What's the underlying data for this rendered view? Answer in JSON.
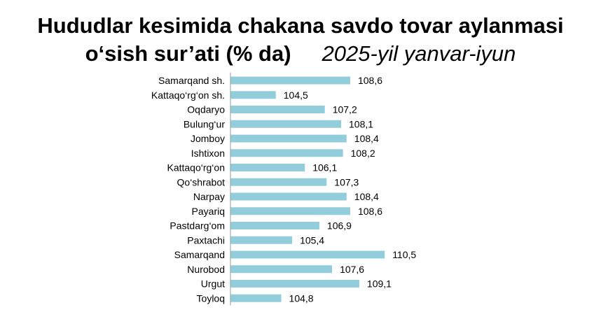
{
  "title_line1": "Hududlar kesimida chakana savdo tovar aylanmasi",
  "title_line2": "o‘sish sur’ati (% da)",
  "subtitle": "2025-yil yanvar-iyun",
  "bar_color": "#92CDDC",
  "chart_data": {
    "type": "bar",
    "orientation": "horizontal",
    "title": "Hududlar kesimida chakana savdo tovar aylanmasi o‘sish sur’ati (% da)",
    "subtitle": "2025-yil yanvar-iyun",
    "categories": [
      "Samarqand sh.",
      "Kattaqo‘rg‘on sh.",
      "Oqdaryo",
      "Bulung‘ur",
      "Jomboy",
      "Ishtixon",
      "Kattaqo‘rg‘on",
      "Qo‘shrabot",
      "Narpay",
      "Payariq",
      "Pastdarg‘om",
      "Paxtachi",
      "Samarqand",
      "Nurobod",
      "Urgut",
      "Toyloq"
    ],
    "values": [
      108.6,
      104.5,
      107.2,
      108.1,
      108.4,
      108.2,
      106.1,
      107.3,
      108.4,
      108.6,
      106.9,
      105.4,
      110.5,
      107.6,
      109.1,
      104.8
    ],
    "value_labels": [
      "108,6",
      "104,5",
      "107,2",
      "108,1",
      "108,4",
      "108,2",
      "106,1",
      "107,3",
      "108,4",
      "108,6",
      "106,9",
      "105,4",
      "110,5",
      "107,6",
      "109,1",
      "104,8"
    ],
    "xlim": [
      102,
      112.5
    ],
    "grid": false,
    "legend": "none"
  }
}
